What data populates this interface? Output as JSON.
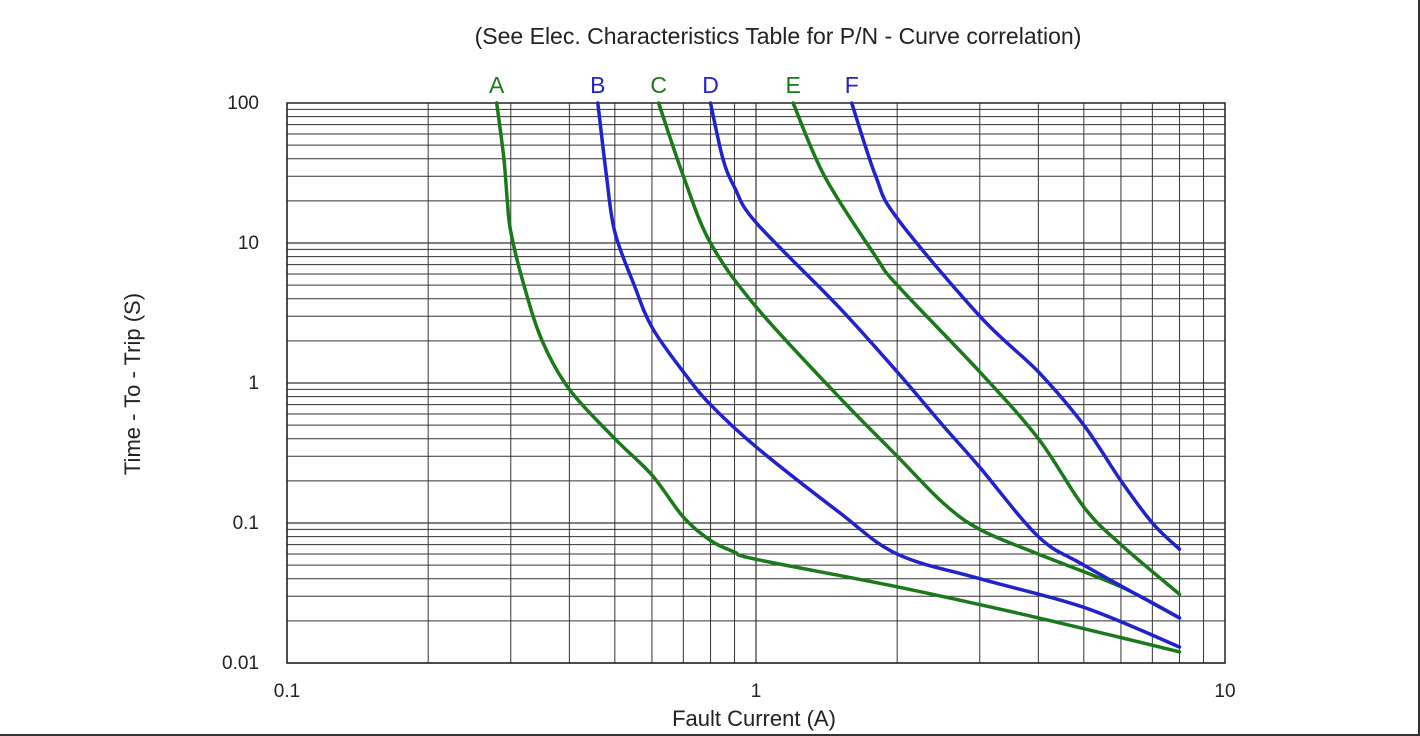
{
  "chart_data": {
    "type": "line",
    "title": "(See Elec. Characteristics Table for P/N - Curve correlation)",
    "xlabel": "Fault Current (A)",
    "ylabel": "Time - To - Trip (S)",
    "x_scale": "log",
    "y_scale": "log",
    "xlim": [
      0.1,
      10
    ],
    "ylim": [
      0.01,
      100
    ],
    "x_ticks": [
      {
        "value": 0.1,
        "label": "0.1"
      },
      {
        "value": 1,
        "label": "1"
      },
      {
        "value": 10,
        "label": "10"
      }
    ],
    "y_ticks": [
      {
        "value": 0.01,
        "label": "0.01"
      },
      {
        "value": 0.1,
        "label": "0.1"
      },
      {
        "value": 1,
        "label": "1"
      },
      {
        "value": 10,
        "label": "10"
      },
      {
        "value": 100,
        "label": "100"
      }
    ],
    "grid": true,
    "legend": "curve labels above plot",
    "series": [
      {
        "name": "A",
        "color": "#1a7a1a",
        "points": [
          [
            0.28,
            100
          ],
          [
            0.29,
            40
          ],
          [
            0.295,
            20
          ],
          [
            0.3,
            12
          ],
          [
            0.32,
            5
          ],
          [
            0.35,
            2
          ],
          [
            0.4,
            0.9
          ],
          [
            0.5,
            0.4
          ],
          [
            0.6,
            0.22
          ],
          [
            0.7,
            0.11
          ],
          [
            0.8,
            0.075
          ],
          [
            0.9,
            0.062
          ],
          [
            1.0,
            0.055
          ],
          [
            2.0,
            0.035
          ],
          [
            4.0,
            0.021
          ],
          [
            8.0,
            0.012
          ]
        ]
      },
      {
        "name": "B",
        "color": "#2222cc",
        "points": [
          [
            0.46,
            100
          ],
          [
            0.48,
            30
          ],
          [
            0.5,
            12
          ],
          [
            0.55,
            5
          ],
          [
            0.6,
            2.5
          ],
          [
            0.7,
            1.2
          ],
          [
            0.8,
            0.7
          ],
          [
            1.0,
            0.35
          ],
          [
            1.5,
            0.12
          ],
          [
            2.0,
            0.06
          ],
          [
            3.0,
            0.04
          ],
          [
            5.0,
            0.025
          ],
          [
            8.0,
            0.013
          ]
        ]
      },
      {
        "name": "C",
        "color": "#1a7a1a",
        "points": [
          [
            0.62,
            100
          ],
          [
            0.7,
            30
          ],
          [
            0.8,
            10
          ],
          [
            1.0,
            3.5
          ],
          [
            1.5,
            0.8
          ],
          [
            2.0,
            0.3
          ],
          [
            2.5,
            0.14
          ],
          [
            3.0,
            0.09
          ],
          [
            4.0,
            0.06
          ],
          [
            6.0,
            0.035
          ],
          [
            8.0,
            0.021
          ]
        ]
      },
      {
        "name": "D",
        "color": "#2222cc",
        "points": [
          [
            0.8,
            100
          ],
          [
            0.85,
            40
          ],
          [
            0.9,
            25
          ],
          [
            1.0,
            14
          ],
          [
            1.5,
            3.5
          ],
          [
            2.0,
            1.2
          ],
          [
            2.5,
            0.5
          ],
          [
            3.0,
            0.25
          ],
          [
            4.0,
            0.08
          ],
          [
            5.0,
            0.05
          ],
          [
            8.0,
            0.021
          ]
        ]
      },
      {
        "name": "E",
        "color": "#1a7a1a",
        "points": [
          [
            1.2,
            100
          ],
          [
            1.4,
            30
          ],
          [
            1.8,
            8
          ],
          [
            2.0,
            5
          ],
          [
            3.0,
            1.2
          ],
          [
            4.0,
            0.4
          ],
          [
            5.0,
            0.13
          ],
          [
            6.0,
            0.07
          ],
          [
            8.0,
            0.031
          ]
        ]
      },
      {
        "name": "F",
        "color": "#2222cc",
        "points": [
          [
            1.6,
            100
          ],
          [
            1.8,
            30
          ],
          [
            2.0,
            15
          ],
          [
            3.0,
            3
          ],
          [
            4.0,
            1.2
          ],
          [
            5.0,
            0.5
          ],
          [
            6.0,
            0.2
          ],
          [
            7.0,
            0.1
          ],
          [
            8.0,
            0.065
          ]
        ]
      }
    ]
  }
}
